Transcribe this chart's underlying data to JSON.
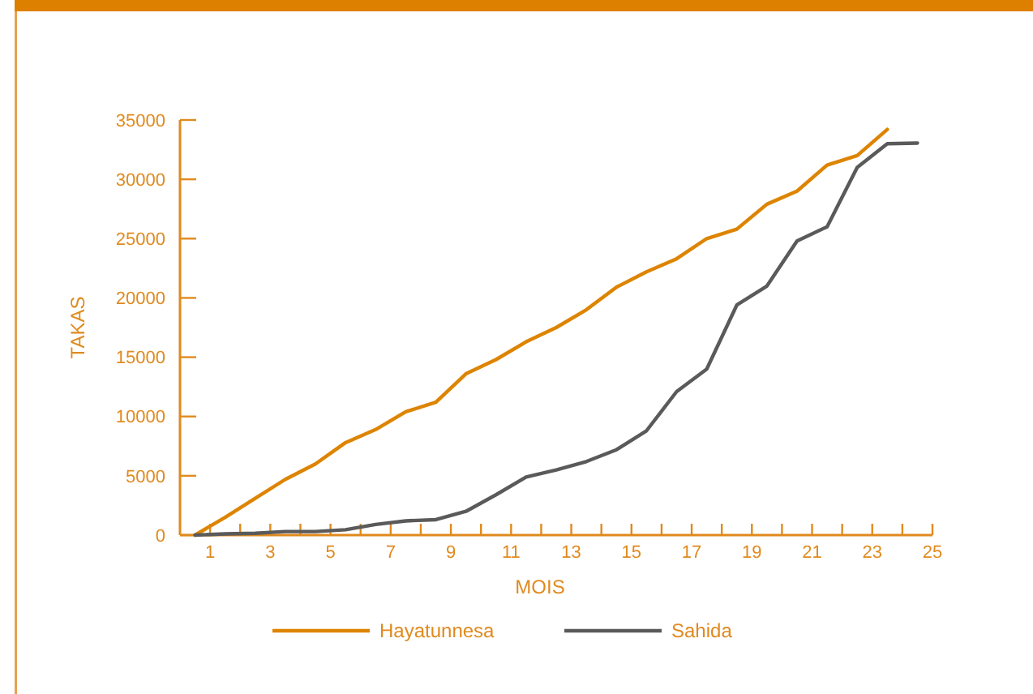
{
  "chart_data": {
    "type": "line",
    "xlabel": "MOIS",
    "ylabel": "TAKAS",
    "x": [
      0.5,
      1.5,
      2.5,
      3.5,
      4.5,
      5.5,
      6.5,
      7.5,
      8.5,
      9.5,
      10.5,
      11.5,
      12.5,
      13.5,
      14.5,
      15.5,
      16.5,
      17.5,
      18.5,
      19.5,
      20.5,
      21.5,
      22.5,
      23.5,
      24.5
    ],
    "series": [
      {
        "name": "Hayatunnesa",
        "color": "#dd8400",
        "values": [
          0,
          1500,
          3100,
          4700,
          6000,
          7800,
          8900,
          10400,
          11200,
          13600,
          14800,
          16300,
          17500,
          19000,
          20900,
          22200,
          23300,
          25000,
          25800,
          27900,
          29000,
          31200,
          32000,
          34200,
          null
        ]
      },
      {
        "name": "Sahida",
        "color": "#5a5a5a",
        "values": [
          0,
          100,
          150,
          300,
          300,
          450,
          900,
          1200,
          1300,
          2000,
          3400,
          4900,
          5500,
          6200,
          7200,
          8800,
          12100,
          14000,
          19400,
          21000,
          24800,
          26000,
          31000,
          33000,
          33050
        ]
      }
    ],
    "xlim": [
      0,
      25
    ],
    "xticks": [
      1,
      {
        "value": 2,
        "label": null
      },
      3,
      {
        "value": 4,
        "label": null
      },
      5,
      {
        "value": 6,
        "label": null
      },
      7,
      {
        "value": 8,
        "label": null
      },
      9,
      {
        "value": 10,
        "label": null
      },
      11,
      {
        "value": 12,
        "label": null
      },
      13,
      {
        "value": 14,
        "label": null
      },
      15,
      {
        "value": 16,
        "label": null
      },
      17,
      {
        "value": 18,
        "label": null
      },
      19,
      {
        "value": 20,
        "label": null
      },
      21,
      {
        "value": 22,
        "label": null
      },
      23,
      {
        "value": 24,
        "label": null
      },
      25
    ],
    "ylim": [
      0,
      35000
    ],
    "yticks": [
      0,
      5000,
      10000,
      15000,
      20000,
      25000,
      30000,
      35000
    ],
    "grid": false,
    "legend": "bottom",
    "marker": "none",
    "line_style": "solid"
  }
}
